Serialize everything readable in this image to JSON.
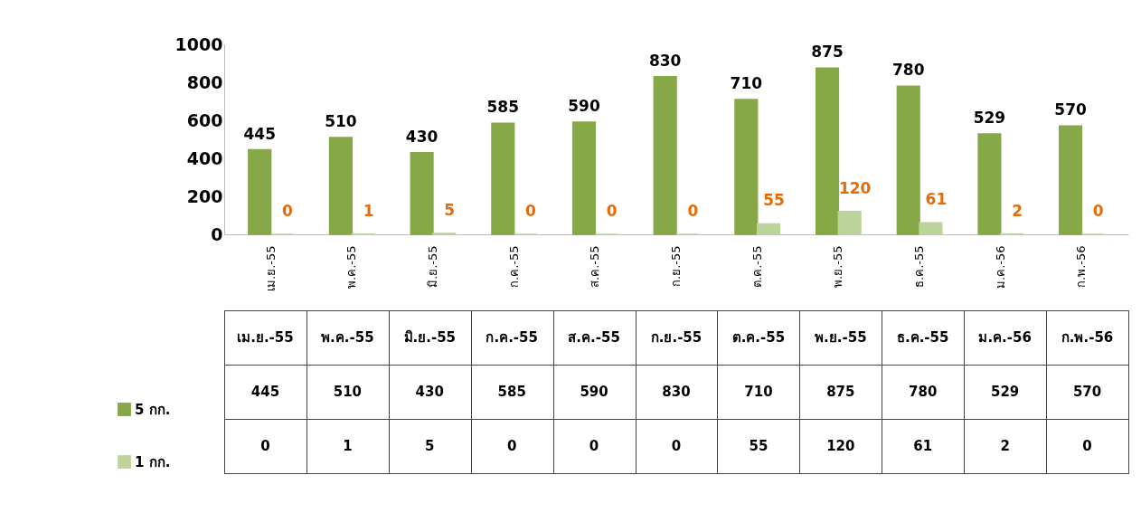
{
  "chart_data": {
    "type": "bar",
    "categories": [
      "เม.ย.-55",
      "พ.ค.-55",
      "มิ.ย.-55",
      "ก.ค.-55",
      "ส.ค.-55",
      "ก.ย.-55",
      "ต.ค.-55",
      "พ.ย.-55",
      "ธ.ค.-55",
      "ม.ค.-56",
      "ก.พ.-56"
    ],
    "series": [
      {
        "name": "5 กก.",
        "color": "#86a846",
        "values": [
          445,
          510,
          430,
          585,
          590,
          830,
          710,
          875,
          780,
          529,
          570
        ],
        "value_labels": [
          "445",
          "510",
          "430",
          "585",
          "590",
          "830",
          "710",
          "875",
          "780",
          "529",
          "570"
        ]
      },
      {
        "name": "1 กก.",
        "color": "#bcd49c",
        "values": [
          0,
          1,
          5,
          0,
          0,
          0,
          55,
          120,
          61,
          2,
          0
        ],
        "value_labels": [
          "0",
          "1",
          "5",
          "0",
          "0",
          "0",
          "55",
          "120",
          "61",
          "2",
          "0"
        ]
      }
    ],
    "ylim": [
      0,
      1000
    ],
    "yticks": [
      0,
      200,
      400,
      600,
      800,
      1000
    ],
    "grid": false,
    "legend": "bottom",
    "annotations": [
      "445",
      "510",
      "430",
      "585",
      "590",
      "830",
      "710",
      "875",
      "780",
      "529",
      "570",
      "0",
      "1",
      "5",
      "0",
      "0",
      "0",
      "55",
      "120",
      "61",
      "2",
      "0"
    ]
  }
}
